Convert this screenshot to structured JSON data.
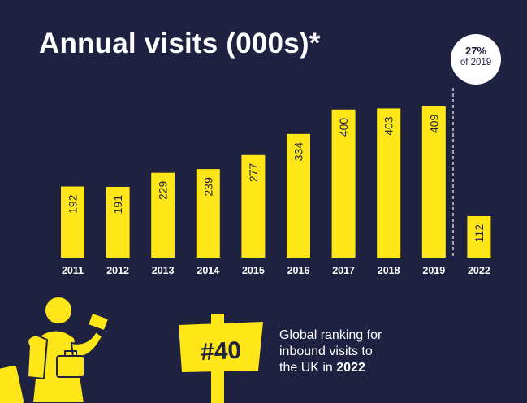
{
  "badge": {
    "percent": "27%",
    "label": "of 2019"
  },
  "ranking": {
    "value": "#40",
    "text_line1": "Global ranking for",
    "text_line2": "inbound visits to",
    "text_line3": "the UK in",
    "year": "2022"
  },
  "colors": {
    "background": "#1f2140",
    "bar": "#ffe619",
    "text": "#ffffff"
  },
  "chart_data": {
    "type": "bar",
    "title": "Annual visits (000s)*",
    "categories": [
      "2011",
      "2012",
      "2013",
      "2014",
      "2015",
      "2016",
      "2017",
      "2018",
      "2019",
      "2022"
    ],
    "values": [
      192,
      191,
      229,
      239,
      277,
      334,
      400,
      403,
      409,
      112
    ],
    "data_labels": [
      "192",
      "191",
      "229",
      "239",
      "277",
      "334",
      "400",
      "403",
      "409",
      "112"
    ],
    "ylim": [
      0,
      450
    ],
    "grid": false,
    "data_label_orientation": "vertical",
    "separator_before": "2022"
  }
}
